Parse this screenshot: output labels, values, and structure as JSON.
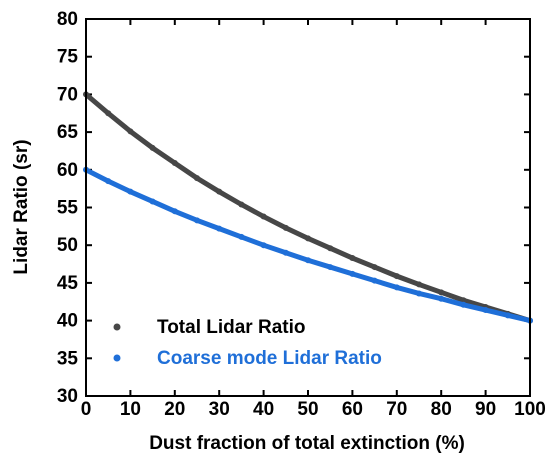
{
  "chart_data": {
    "type": "scatter",
    "x_label": "Dust fraction of total extinction (%)",
    "y_label": "Lidar Ratio (sr)",
    "x": [
      0,
      5,
      10,
      15,
      20,
      25,
      30,
      35,
      40,
      45,
      50,
      55,
      60,
      65,
      70,
      75,
      80,
      85,
      90,
      95,
      100
    ],
    "series": [
      {
        "name": "Total Lidar Ratio",
        "color": "#474747",
        "values": [
          70,
          67.5,
          65.1,
          62.9,
          60.9,
          58.9,
          57.1,
          55.4,
          53.8,
          52.3,
          50.9,
          49.6,
          48.3,
          47.1,
          45.9,
          44.8,
          43.75,
          42.7,
          41.8,
          40.9,
          40
        ]
      },
      {
        "name": "Coarse mode Lidar Ratio",
        "color": "#1f6fd8",
        "values": [
          60,
          58.5,
          57.1,
          55.8,
          54.5,
          53.3,
          52.2,
          51.1,
          50,
          49,
          48,
          47.1,
          46.2,
          45.3,
          44.4,
          43.6,
          42.9,
          42.1,
          41.4,
          40.7,
          40
        ]
      }
    ],
    "xlim": [
      0,
      100
    ],
    "xticks": [
      0,
      10,
      20,
      30,
      40,
      50,
      60,
      70,
      80,
      90,
      100
    ],
    "ylim": [
      30,
      80
    ],
    "yticks": [
      30,
      35,
      40,
      45,
      50,
      55,
      60,
      65,
      70,
      75,
      80
    ],
    "legend": "lower left"
  }
}
